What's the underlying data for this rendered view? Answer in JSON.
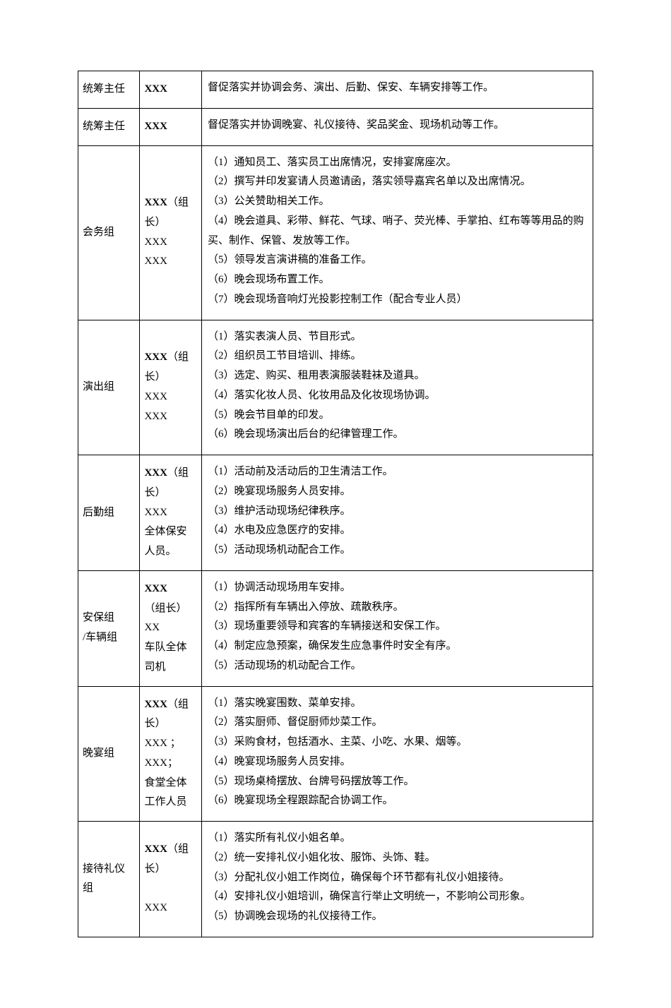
{
  "colors": {
    "background": "#ffffff",
    "text": "#000000",
    "border": "#000000"
  },
  "typography": {
    "font_family": "SimSun",
    "base_size_pt": 11,
    "line_height": 1.85
  },
  "table": {
    "col_widths_pct": [
      12,
      12,
      76
    ],
    "rows": [
      {
        "group": "统筹主任",
        "members_bold": "XXX",
        "members_rest": "",
        "duties": [
          "督促落实并协调会务、演出、后勤、保安、车辆安排等工作。"
        ]
      },
      {
        "group": "统筹主任",
        "members_bold": "XXX",
        "members_rest": "",
        "duties": [
          "督促落实并协调晚宴、礼仪接待、奖品奖金、现场机动等工作。"
        ]
      },
      {
        "group": "会务组",
        "members_bold": "XXX",
        "members_paren": "（组长）",
        "members_rest": "XXX\nXXX",
        "duties": [
          "（1）通知员工、落实员工出席情况，安排宴席座次。",
          "（2）撰写并印发宴请人员邀请函，落实领导嘉宾名单以及出席情况。",
          "（3）公关赞助相关工作。",
          "（4）晚会道具、彩带、鲜花、气球、哨子、荧光棒、手掌拍、红布等等用品的购买、制作、保管、发放等工作。",
          "（5）领导发言演讲稿的准备工作。",
          "（6）晚会现场布置工作。",
          "（7）晚会现场音响灯光投影控制工作（配合专业人员）"
        ]
      },
      {
        "group": "演出组",
        "members_bold": "XXX",
        "members_paren": "（组长）",
        "members_rest": "XXX\nXXX",
        "duties": [
          "（1）落实表演人员、节目形式。",
          "（2）组织员工节目培训、排练。",
          "（3）选定、购买、租用表演服装鞋袜及道具。",
          "（4）落实化妆人员、化妆用品及化妆现场协调。",
          "（5）晚会节目单的印发。",
          "（6）晚会现场演出后台的纪律管理工作。"
        ]
      },
      {
        "group": "后勤组",
        "members_bold": "XXX",
        "members_paren": "（组长）",
        "members_rest": "XXX\n全体保安人员。",
        "duties": [
          "（1）活动前及活动后的卫生清洁工作。",
          "（2）晚宴现场服务人员安排。",
          "（3）维护活动现场纪律秩序。",
          "（4）水电及应急医疗的安排。",
          "（5）活动现场机动配合工作。"
        ]
      },
      {
        "group": "安保组\n/车辆组",
        "members_bold": "XXX",
        "members_paren": "（组长）",
        "members_rest": "XX\n车队全体司机",
        "centered_paren": true,
        "duties": [
          "（1）协调活动现场用车安排。",
          "（2）指挥所有车辆出入停放、疏散秩序。",
          "（3）现场重要领导和宾客的车辆接送和安保工作。",
          "（4）制定应急预案，确保发生应急事件时安全有序。",
          "（5）活动现场的机动配合工作。"
        ]
      },
      {
        "group": "晚宴组",
        "members_bold": "XXX",
        "members_paren": "（组长）",
        "members_rest": "XXX ；\nXXX；\n食堂全体工作人员",
        "duties": [
          "（1）落实晚宴围数、菜单安排。",
          "（2）落实厨师、督促厨师炒菜工作。",
          "（3）采购食材，包括酒水、主菜、小吃、水果、烟等。",
          "（4）晚宴现场服务人员安排。",
          "（5）现场桌椅摆放、台牌号码摆放等工作。",
          "（6）晚宴现场全程跟踪配合协调工作。"
        ]
      },
      {
        "group": "接待礼仪组",
        "members_bold": "XXX",
        "members_paren": "（组长）",
        "members_rest": "\nXXX",
        "duties": [
          "（1）落实所有礼仪小姐名单。",
          "（2）统一安排礼仪小姐化妆、服饰、头饰、鞋。",
          "（3）分配礼仪小姐工作岗位，确保每个环节都有礼仪小姐接待。",
          "（4）安排礼仪小姐培训，确保言行举止文明统一，不影响公司形象。",
          "（5）协调晚会现场的礼仪接待工作。"
        ]
      }
    ]
  }
}
